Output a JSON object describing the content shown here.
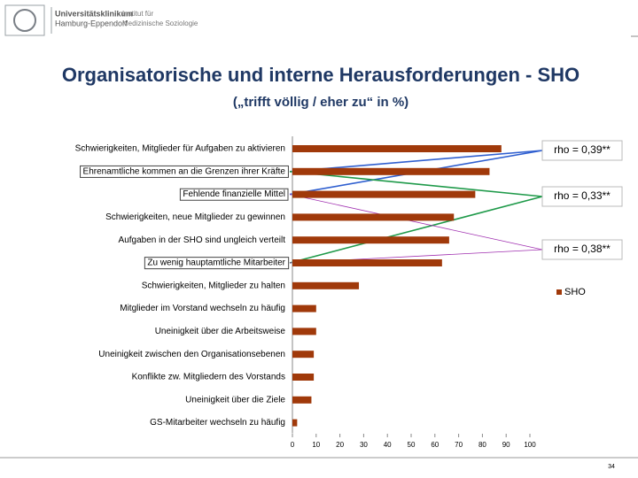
{
  "header": {
    "institution": [
      "Universitätsklinikum",
      "Hamburg-Eppendorf"
    ],
    "department": [
      "Institut für",
      "Medizinische Soziologie"
    ]
  },
  "chart_data": {
    "type": "hbar",
    "title": "Organisatorische und interne Herausforderungen - SHO",
    "subtitle": "(„trifft völlig / eher zu“ in %)",
    "categories": [
      "Schwierigkeiten, Mitglieder für Aufgaben zu aktivieren",
      "Ehrenamtliche kommen an die Grenzen ihrer Kräfte",
      "Fehlende finanzielle Mittel",
      "Schwierigkeiten, neue Mitglieder zu gewinnen",
      "Aufgaben in der SHO sind ungleich verteilt",
      "Zu wenig hauptamtliche Mitarbeiter",
      "Schwierigkeiten, Mitglieder zu halten",
      "Mitglieder im Vorstand wechseln zu häufig",
      "Uneinigkeit über die Arbeitsweise",
      "Uneinigkeit zwischen den Organisationsebenen",
      "Konflikte zw. Mitgliedern des Vorstands",
      "Uneinigkeit über die Ziele",
      "GS-Mitarbeiter wechseln zu häufig"
    ],
    "series": [
      {
        "name": "SHO",
        "color": "#a0390a",
        "values": [
          88,
          83,
          77,
          68,
          66,
          63,
          28,
          10,
          10,
          9,
          9,
          8,
          2
        ]
      }
    ],
    "xlim": [
      0,
      100
    ],
    "xticks": [
      0,
      10,
      20,
      30,
      40,
      50,
      60,
      70,
      80,
      90,
      100
    ],
    "legend": "right",
    "annotations": [
      "rho = 0,39**",
      "rho = 0,33**",
      "rho = 0,38**"
    ]
  },
  "page_number": 34
}
